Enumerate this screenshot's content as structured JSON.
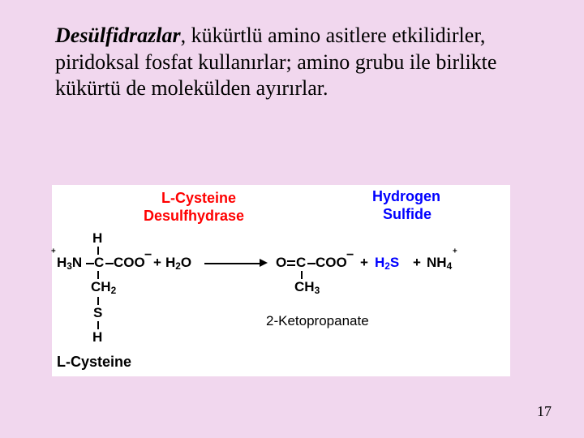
{
  "type": "infographic",
  "background_color": "#f1d7ee",
  "diagram_bg": "#ffffff",
  "colors": {
    "red": "#ff0000",
    "blue": "#0000ff",
    "black": "#000000"
  },
  "text": {
    "term": "Desülfidrazlar",
    "body": ", kükürtlü amino asitlere etkilidirler, piridoksal fosfat kullanırlar; amino grubu ile birlikte kükürtü de molekülden ayırırlar."
  },
  "page_number": "17",
  "diagram": {
    "enzyme_line1": "L-Cysteine",
    "enzyme_line2": "Desulfhydrase",
    "product_label1": "Hydrogen",
    "product_label2": "Sulfide",
    "reactant_name": "L-Cysteine",
    "product_name": "2-Ketopropanate",
    "h": "H",
    "h3n": "H<sub>3</sub>N",
    "c": "C",
    "coo": "COO",
    "ch2": "CH<sub>2</sub>",
    "ch3": "CH<sub>3</sub>",
    "s": "S",
    "h2o": "H<sub>2</sub>O",
    "o_double_c": "O=C",
    "h2s": "H<sub>2</sub>S",
    "nh4": "NH<sub>4</sub>",
    "plus": "+",
    "minus": "−",
    "sup_plus": "+"
  }
}
